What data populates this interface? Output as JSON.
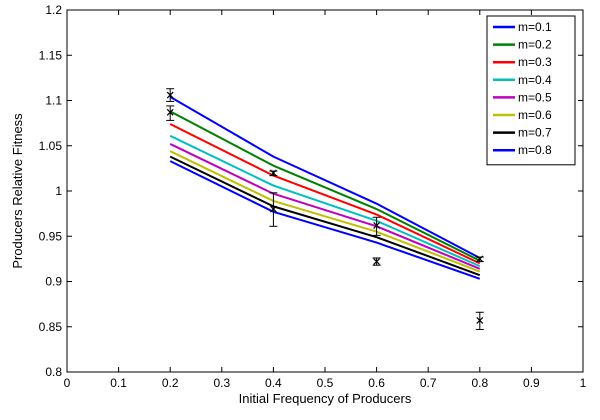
{
  "chart_data": {
    "type": "line",
    "title": "",
    "xlabel": "Initial Frequency of Producers",
    "ylabel": "Producers Relative Fitness",
    "xlim": [
      0,
      1
    ],
    "ylim": [
      0.8,
      1.2
    ],
    "x_ticks": [
      "0",
      "0.1",
      "0.2",
      "0.3",
      "0.4",
      "0.5",
      "0.6",
      "0.7",
      "0.8",
      "0.9",
      "1"
    ],
    "y_ticks": [
      "0.8",
      "0.85",
      "0.9",
      "0.95",
      "1",
      "1.05",
      "1.1",
      "1.15",
      "1.2"
    ],
    "grid": false,
    "legend_position": "top-right",
    "x": [
      0.2,
      0.4,
      0.6,
      0.8
    ],
    "series": [
      {
        "name": "m=0.1",
        "color": "#0000ff",
        "values": [
          1.104,
          1.038,
          0.986,
          0.926
        ]
      },
      {
        "name": "m=0.2",
        "color": "#008000",
        "values": [
          1.088,
          1.028,
          0.98,
          0.923
        ]
      },
      {
        "name": "m=0.3",
        "color": "#ff0000",
        "values": [
          1.074,
          1.017,
          0.974,
          0.92
        ]
      },
      {
        "name": "m=0.4",
        "color": "#00bfbf",
        "values": [
          1.061,
          1.006,
          0.967,
          0.917
        ]
      },
      {
        "name": "m=0.5",
        "color": "#bf00bf",
        "values": [
          1.052,
          0.997,
          0.961,
          0.914
        ]
      },
      {
        "name": "m=0.6",
        "color": "#bfbf00",
        "values": [
          1.044,
          0.989,
          0.955,
          0.911
        ]
      },
      {
        "name": "m=0.7",
        "color": "#000000",
        "values": [
          1.038,
          0.983,
          0.949,
          0.907
        ]
      },
      {
        "name": "m=0.8",
        "color": "#0000ff",
        "values": [
          1.033,
          0.977,
          0.943,
          0.903
        ]
      }
    ],
    "observed": [
      {
        "x": 0.2,
        "y": 1.106,
        "low": 1.099,
        "high": 1.113
      },
      {
        "x": 0.2,
        "y": 1.087,
        "low": 1.078,
        "high": 1.094
      },
      {
        "x": 0.4,
        "y": 1.02,
        "low": 1.017,
        "high": 1.022
      },
      {
        "x": 0.4,
        "y": 0.98,
        "low": 0.961,
        "high": 0.998
      },
      {
        "x": 0.6,
        "y": 0.962,
        "low": 0.951,
        "high": 0.971
      },
      {
        "x": 0.6,
        "y": 0.922,
        "low": 0.918,
        "high": 0.926
      },
      {
        "x": 0.8,
        "y": 0.925,
        "low": 0.922,
        "high": 0.927
      },
      {
        "x": 0.8,
        "y": 0.857,
        "low": 0.847,
        "high": 0.866
      }
    ]
  }
}
